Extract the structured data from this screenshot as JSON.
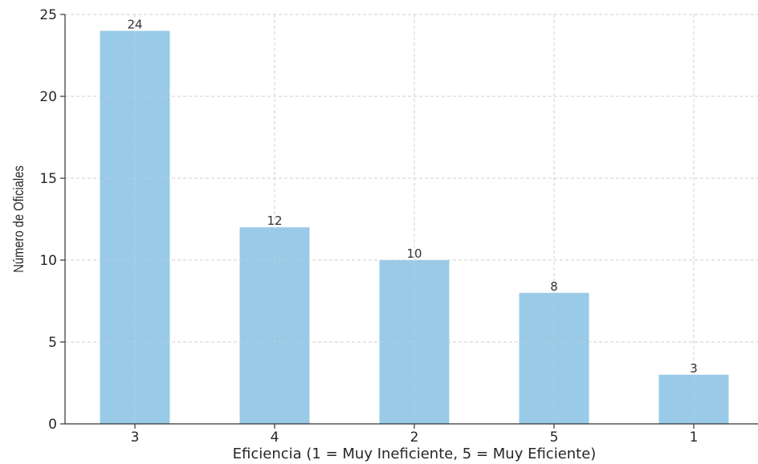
{
  "chart_data": {
    "type": "bar",
    "categories": [
      "3",
      "4",
      "2",
      "5",
      "1"
    ],
    "values": [
      24,
      12,
      10,
      8,
      3
    ],
    "data_labels": [
      "24",
      "12",
      "10",
      "8",
      "3"
    ],
    "xlabel": "Eficiencia (1 = Muy Ineficiente, 5 = Muy Eficiente)",
    "ylabel": "Número de Oficiales",
    "ylim": [
      0,
      25
    ],
    "yticks": [
      "0",
      "5",
      "10",
      "15",
      "20",
      "25"
    ],
    "grid": true,
    "colors": {
      "bar": "#99cbe8",
      "grid": "#cfcfcf",
      "axis": "#333333"
    }
  }
}
